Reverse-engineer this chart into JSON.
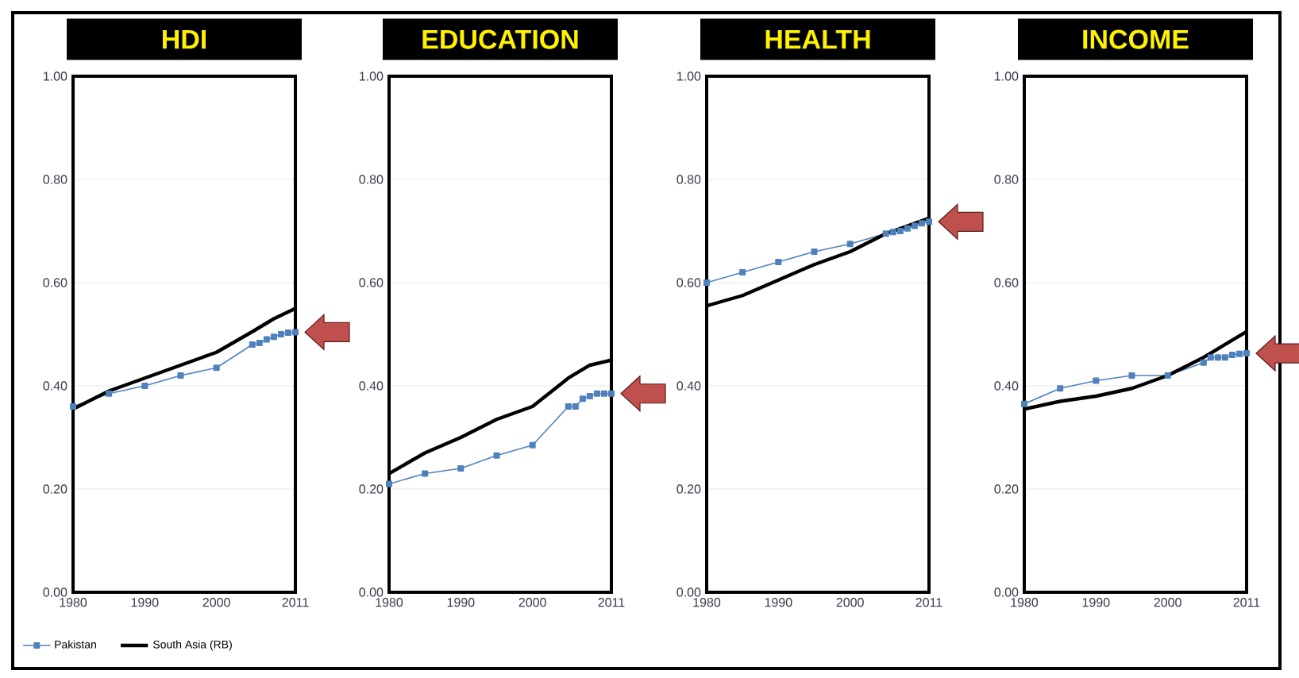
{
  "chart_data": [
    {
      "type": "line",
      "title": "HDI",
      "xlim": [
        1980,
        2011
      ],
      "xticks": [
        1980,
        1990,
        2000,
        2011
      ],
      "ylim": [
        0,
        1
      ],
      "yticks": [
        {
          "value": 0,
          "label": "0.00"
        },
        {
          "value": 0.2,
          "label": "0.20"
        },
        {
          "value": 0.4,
          "label": "0.40"
        },
        {
          "value": 0.6,
          "label": "0.60"
        },
        {
          "value": 0.8,
          "label": "0.80"
        },
        {
          "value": 1,
          "label": "1.00"
        }
      ],
      "grid": "y",
      "legend": "bottom",
      "series": [
        {
          "name": "Pakistan",
          "color": "#4f81bd",
          "marker": "square",
          "x": [
            1980,
            1985,
            1990,
            1995,
            2000,
            2005,
            2006,
            2007,
            2008,
            2009,
            2010,
            2011
          ],
          "values": [
            0.36,
            0.385,
            0.4,
            0.42,
            0.435,
            0.48,
            0.483,
            0.49,
            0.495,
            0.5,
            0.503,
            0.504
          ]
        },
        {
          "name": "South Asia (RB)",
          "color": "#000000",
          "marker": "none",
          "x": [
            1980,
            1985,
            1990,
            1995,
            2000,
            2005,
            2008,
            2011
          ],
          "values": [
            0.355,
            0.39,
            0.415,
            0.44,
            0.465,
            0.505,
            0.53,
            0.55
          ]
        }
      ]
    },
    {
      "type": "line",
      "title": "EDUCATION",
      "xlim": [
        1980,
        2011
      ],
      "xticks": [
        1980,
        1990,
        2000,
        2011
      ],
      "ylim": [
        0,
        1
      ],
      "yticks": [
        {
          "value": 0,
          "label": "0.00"
        },
        {
          "value": 0.2,
          "label": "0.20"
        },
        {
          "value": 0.4,
          "label": "0.40"
        },
        {
          "value": 0.6,
          "label": "0.60"
        },
        {
          "value": 0.8,
          "label": "0.80"
        },
        {
          "value": 1,
          "label": "1.00"
        }
      ],
      "grid": "y",
      "series": [
        {
          "color": "#4f81bd",
          "marker": "square",
          "x": [
            1980,
            1985,
            1990,
            1995,
            2000,
            2005,
            2006,
            2007,
            2008,
            2009,
            2010,
            2011
          ],
          "values": [
            0.21,
            0.23,
            0.24,
            0.265,
            0.285,
            0.36,
            0.36,
            0.375,
            0.38,
            0.385,
            0.385,
            0.385
          ]
        },
        {
          "color": "#000000",
          "marker": "none",
          "x": [
            1980,
            1985,
            1990,
            1995,
            2000,
            2005,
            2008,
            2011
          ],
          "values": [
            0.23,
            0.27,
            0.3,
            0.335,
            0.36,
            0.415,
            0.44,
            0.45
          ]
        }
      ]
    },
    {
      "type": "line",
      "title": "HEALTH",
      "xlim": [
        1980,
        2011
      ],
      "xticks": [
        1980,
        1990,
        2000,
        2011
      ],
      "ylim": [
        0,
        1
      ],
      "yticks": [
        {
          "value": 0,
          "label": "0.00"
        },
        {
          "value": 0.2,
          "label": "0.20"
        },
        {
          "value": 0.4,
          "label": "0.40"
        },
        {
          "value": 0.6,
          "label": "0.60"
        },
        {
          "value": 0.8,
          "label": "0.80"
        },
        {
          "value": 1,
          "label": "1.00"
        }
      ],
      "grid": "y",
      "series": [
        {
          "color": "#4f81bd",
          "marker": "square",
          "x": [
            1980,
            1985,
            1990,
            1995,
            2000,
            2005,
            2006,
            2007,
            2008,
            2009,
            2010,
            2011
          ],
          "values": [
            0.6,
            0.62,
            0.64,
            0.66,
            0.675,
            0.695,
            0.698,
            0.7,
            0.705,
            0.71,
            0.715,
            0.718
          ]
        },
        {
          "color": "#000000",
          "marker": "none",
          "x": [
            1980,
            1985,
            1990,
            1995,
            2000,
            2005,
            2008,
            2011
          ],
          "values": [
            0.555,
            0.575,
            0.605,
            0.635,
            0.66,
            0.695,
            0.71,
            0.725
          ]
        }
      ]
    },
    {
      "type": "line",
      "title": "INCOME",
      "xlim": [
        1980,
        2011
      ],
      "xticks": [
        1980,
        1990,
        2000,
        2011
      ],
      "ylim": [
        0,
        1
      ],
      "yticks": [
        {
          "value": 0,
          "label": "0.00"
        },
        {
          "value": 0.2,
          "label": "0.20"
        },
        {
          "value": 0.4,
          "label": "0.40"
        },
        {
          "value": 0.6,
          "label": "0.60"
        },
        {
          "value": 0.8,
          "label": "0.80"
        },
        {
          "value": 1,
          "label": "1.00"
        }
      ],
      "grid": "y",
      "series": [
        {
          "color": "#4f81bd",
          "marker": "square",
          "x": [
            1980,
            1985,
            1990,
            1995,
            2000,
            2005,
            2006,
            2007,
            2008,
            2009,
            2010,
            2011
          ],
          "values": [
            0.365,
            0.395,
            0.41,
            0.42,
            0.42,
            0.445,
            0.455,
            0.455,
            0.455,
            0.46,
            0.462,
            0.463
          ]
        },
        {
          "color": "#000000",
          "marker": "none",
          "x": [
            1980,
            1985,
            1990,
            1995,
            2000,
            2005,
            2008,
            2011
          ],
          "values": [
            0.355,
            0.37,
            0.38,
            0.395,
            0.42,
            0.455,
            0.48,
            0.505
          ]
        }
      ]
    }
  ]
}
